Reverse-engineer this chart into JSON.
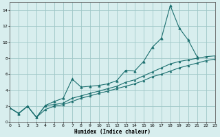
{
  "xlabel": "Humidex (Indice chaleur)",
  "bg_color": "#d8eeee",
  "grid_color": "#a0c8c8",
  "line_color": "#1a6e6e",
  "xlim": [
    0,
    23
  ],
  "ylim": [
    0,
    15
  ],
  "xticks": [
    0,
    1,
    2,
    3,
    4,
    5,
    6,
    7,
    8,
    9,
    10,
    11,
    12,
    13,
    14,
    15,
    16,
    17,
    18,
    19,
    20,
    21,
    22,
    23
  ],
  "yticks": [
    0,
    2,
    4,
    6,
    8,
    10,
    12,
    14
  ],
  "series1_x": [
    0,
    1,
    2,
    3,
    4,
    5,
    6,
    7,
    8,
    9,
    10,
    11,
    12,
    13,
    14,
    15,
    16,
    17,
    18,
    19,
    20,
    21
  ],
  "series1_y": [
    1.8,
    1.1,
    2.0,
    0.6,
    2.1,
    2.6,
    3.0,
    5.4,
    4.4,
    4.5,
    4.6,
    4.8,
    5.2,
    6.5,
    6.4,
    7.6,
    9.4,
    10.5,
    14.6,
    11.8,
    10.3,
    8.2
  ],
  "series2_x": [
    0,
    1,
    2,
    3,
    4,
    5,
    6,
    7,
    8,
    9,
    10,
    11,
    12,
    13,
    14,
    15,
    16,
    17,
    18,
    19,
    20,
    21,
    22,
    23
  ],
  "series2_y": [
    1.8,
    1.1,
    2.0,
    0.6,
    2.1,
    2.2,
    2.4,
    3.0,
    3.3,
    3.6,
    3.9,
    4.2,
    4.5,
    5.0,
    5.3,
    5.8,
    6.3,
    6.8,
    7.3,
    7.6,
    7.8,
    8.0,
    8.2,
    8.3
  ],
  "series3_x": [
    0,
    1,
    2,
    3,
    4,
    5,
    6,
    7,
    8,
    9,
    10,
    11,
    12,
    13,
    14,
    15,
    16,
    17,
    18,
    19,
    20,
    21,
    22,
    23
  ],
  "series3_y": [
    1.8,
    1.1,
    2.0,
    0.6,
    1.6,
    2.0,
    2.2,
    2.6,
    3.0,
    3.3,
    3.6,
    3.9,
    4.2,
    4.5,
    4.8,
    5.2,
    5.7,
    6.0,
    6.4,
    6.8,
    7.1,
    7.4,
    7.7,
    7.9
  ]
}
